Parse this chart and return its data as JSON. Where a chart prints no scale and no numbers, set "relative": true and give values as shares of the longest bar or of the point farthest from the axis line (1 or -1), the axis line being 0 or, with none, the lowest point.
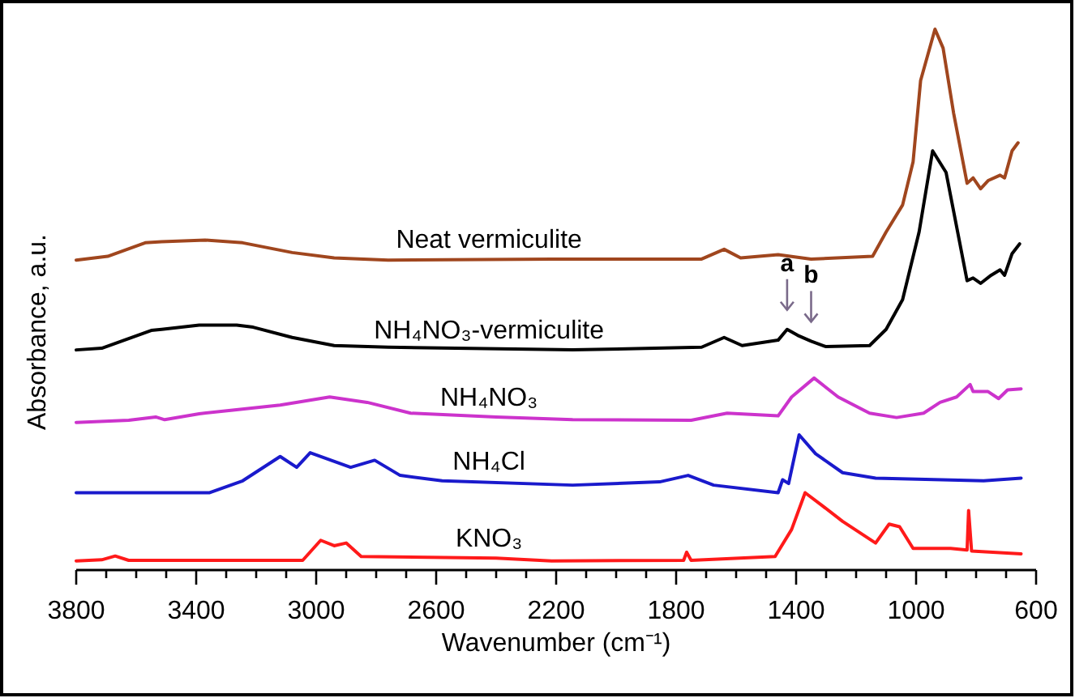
{
  "chart_data": {
    "type": "line",
    "relative": true,
    "xlabel": "Wavenumber (cm⁻¹)",
    "ylabel": "Absorbance, a.u.",
    "xlim": [
      3800,
      600
    ],
    "xticks": [
      3800,
      {
        "value": 3700,
        "label": null
      },
      {
        "value": 3600,
        "label": null
      },
      {
        "value": 3500,
        "label": null
      },
      3400,
      {
        "value": 3300,
        "label": null
      },
      {
        "value": 3200,
        "label": null
      },
      {
        "value": 3100,
        "label": null
      },
      3000,
      {
        "value": 2900,
        "label": null
      },
      {
        "value": 2800,
        "label": null
      },
      {
        "value": 2700,
        "label": null
      },
      2600,
      {
        "value": 2500,
        "label": null
      },
      {
        "value": 2400,
        "label": null
      },
      {
        "value": 2300,
        "label": null
      },
      2200,
      {
        "value": 2100,
        "label": null
      },
      {
        "value": 2000,
        "label": null
      },
      {
        "value": 1900,
        "label": null
      },
      1800,
      {
        "value": 1700,
        "label": null
      },
      {
        "value": 1600,
        "label": null
      },
      {
        "value": 1500,
        "label": null
      },
      1400,
      {
        "value": 1300,
        "label": null
      },
      {
        "value": 1200,
        "label": null
      },
      {
        "value": 1100,
        "label": null
      },
      1000,
      {
        "value": 900,
        "label": null
      },
      {
        "value": 800,
        "label": null
      },
      {
        "value": 700,
        "label": null
      },
      600
    ],
    "grid": false,
    "tick_labels": "x",
    "annotations": [
      {
        "text": "a",
        "x": 1430,
        "y": 0.445
      },
      {
        "text": "b",
        "x": 1350,
        "y": 0.423
      }
    ],
    "series": [
      {
        "name": "Neat vermiculite",
        "color": "#a0461e",
        "x": [
          3800,
          3695,
          3570,
          3515,
          3370,
          3245,
          3080,
          2940,
          2760,
          2215,
          1715,
          1640,
          1585,
          1460,
          1350,
          1145,
          1100,
          1045,
          1010,
          985,
          937,
          910,
          875,
          830,
          810,
          785,
          760,
          720,
          705,
          680,
          660
        ],
        "values": [
          0.573,
          0.58,
          0.605,
          0.607,
          0.61,
          0.605,
          0.587,
          0.577,
          0.573,
          0.575,
          0.575,
          0.593,
          0.577,
          0.583,
          0.575,
          0.58,
          0.625,
          0.675,
          0.755,
          0.905,
          1,
          0.965,
          0.845,
          0.715,
          0.725,
          0.705,
          0.72,
          0.73,
          0.725,
          0.775,
          0.79
        ]
      },
      {
        "name": "NH₄NO₃-vermiculite",
        "color": "#000000",
        "x": [
          3800,
          3715,
          3640,
          3550,
          3515,
          3390,
          3265,
          3210,
          3080,
          2940,
          2760,
          2145,
          1715,
          1640,
          1580,
          1460,
          1430,
          1395,
          1350,
          1300,
          1155,
          1100,
          1045,
          990,
          945,
          900,
          830,
          810,
          785,
          750,
          720,
          705,
          680,
          655
        ],
        "values": [
          0.407,
          0.41,
          0.425,
          0.443,
          0.445,
          0.453,
          0.453,
          0.449,
          0.43,
          0.415,
          0.412,
          0.407,
          0.412,
          0.43,
          0.415,
          0.425,
          0.445,
          0.434,
          0.423,
          0.413,
          0.415,
          0.445,
          0.5,
          0.625,
          0.775,
          0.735,
          0.535,
          0.54,
          0.53,
          0.545,
          0.555,
          0.545,
          0.585,
          0.603
        ]
      },
      {
        "name": "NH₄NO₃",
        "color": "#cc33cc",
        "x": [
          3800,
          3625,
          3535,
          3505,
          3390,
          3120,
          2955,
          2830,
          2685,
          2400,
          2145,
          1750,
          1630,
          1460,
          1415,
          1340,
          1260,
          1155,
          1065,
          975,
          920,
          865,
          820,
          810,
          760,
          725,
          695,
          650
        ],
        "values": [
          0.273,
          0.277,
          0.283,
          0.278,
          0.289,
          0.305,
          0.32,
          0.31,
          0.29,
          0.283,
          0.278,
          0.277,
          0.29,
          0.285,
          0.32,
          0.355,
          0.32,
          0.29,
          0.282,
          0.29,
          0.31,
          0.32,
          0.343,
          0.33,
          0.33,
          0.317,
          0.333,
          0.335
        ]
      },
      {
        "name": "NH₄Cl",
        "color": "#1a1acc",
        "x": [
          3800,
          3355,
          3245,
          3120,
          3065,
          3020,
          2885,
          2805,
          2720,
          2580,
          2145,
          1855,
          1760,
          1675,
          1460,
          1445,
          1425,
          1390,
          1335,
          1245,
          1135,
          775,
          650
        ],
        "values": [
          0.143,
          0.143,
          0.165,
          0.21,
          0.19,
          0.217,
          0.19,
          0.203,
          0.175,
          0.165,
          0.157,
          0.163,
          0.175,
          0.157,
          0.143,
          0.167,
          0.16,
          0.25,
          0.215,
          0.18,
          0.17,
          0.165,
          0.17
        ]
      },
      {
        "name": "KNO₃",
        "color": "#ff1a1a",
        "x": [
          3800,
          3715,
          3670,
          3625,
          3045,
          2985,
          2940,
          2900,
          2850,
          2400,
          2215,
          1775,
          1765,
          1750,
          1470,
          1415,
          1370,
          1315,
          1245,
          1135,
          1090,
          1055,
          1010,
          885,
          830,
          825,
          815,
          650
        ],
        "values": [
          0.017,
          0.019,
          0.026,
          0.018,
          0.018,
          0.055,
          0.045,
          0.05,
          0.025,
          0.022,
          0.017,
          0.018,
          0.033,
          0.018,
          0.025,
          0.075,
          0.143,
          0.12,
          0.09,
          0.05,
          0.085,
          0.08,
          0.04,
          0.04,
          0.037,
          0.11,
          0.035,
          0.03
        ]
      }
    ]
  }
}
